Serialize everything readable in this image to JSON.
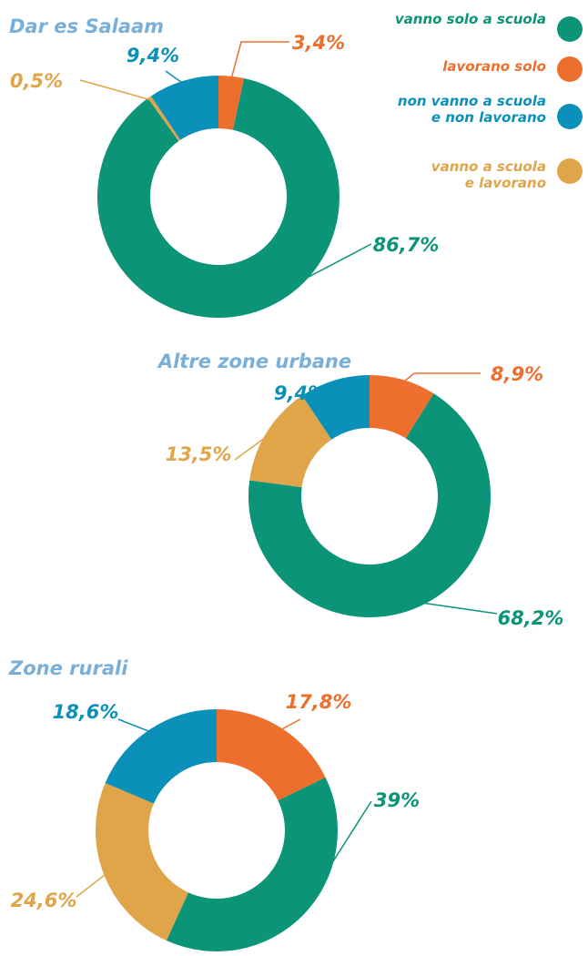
{
  "chart_data": [
    {
      "type": "pie",
      "title": "Dar es Salaam",
      "categories": [
        "lavorano solo",
        "vanno solo a scuola",
        "vanno a scuola\ne lavorano",
        "non vanno a scuola\ne non lavorano"
      ],
      "colors": [
        "#ec6f2d",
        "#0b9478",
        "#dfa548",
        "#0a90b9"
      ],
      "values": [
        3.4,
        86.7,
        0.5,
        9.4
      ],
      "value_labels": [
        "3,4%",
        "86,7%",
        "0,5%",
        "9,4%"
      ]
    },
    {
      "type": "pie",
      "title": "Altre zone urbane",
      "values": [
        8.9,
        68.2,
        13.5,
        9.4
      ],
      "value_labels": [
        "8,9%",
        "68,2%",
        "13,5%",
        "9,4%"
      ]
    },
    {
      "type": "pie",
      "title": "Zone rurali",
      "values": [
        17.8,
        39,
        24.6,
        18.6
      ],
      "value_labels": [
        "17,8%",
        "39%",
        "24,6%",
        "18,6%"
      ]
    }
  ]
}
